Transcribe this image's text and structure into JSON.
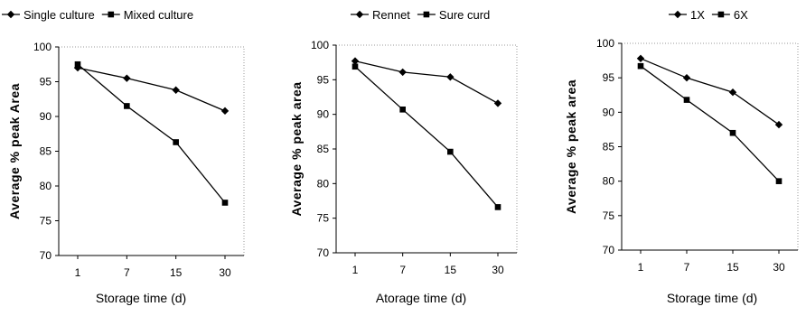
{
  "chart_data": [
    {
      "type": "line",
      "title": "",
      "categories": [
        "1",
        "7",
        "15",
        "30"
      ],
      "series": [
        {
          "name": "Single culture",
          "marker": "diamond",
          "values": [
            97.0,
            95.5,
            93.8,
            90.8
          ]
        },
        {
          "name": "Mixed culture",
          "marker": "square",
          "values": [
            97.5,
            91.5,
            86.3,
            77.6
          ]
        }
      ],
      "xlabel": "Storage time (d)",
      "ylabel": "Average % peak Area",
      "ylim": [
        70,
        100
      ],
      "yticks": [
        "70",
        "75",
        "80",
        "85",
        "90",
        "95",
        "100"
      ],
      "legend_position": "top-left",
      "grid": false
    },
    {
      "type": "line",
      "title": "",
      "categories": [
        "1",
        "7",
        "15",
        "30"
      ],
      "series": [
        {
          "name": "Rennet",
          "marker": "diamond",
          "values": [
            97.7,
            96.1,
            95.4,
            91.6
          ]
        },
        {
          "name": "Sure curd",
          "marker": "square",
          "values": [
            96.9,
            90.7,
            84.6,
            76.6
          ]
        }
      ],
      "xlabel": "Atorage time (d)",
      "ylabel": "Average % peak area",
      "ylim": [
        70,
        100
      ],
      "yticks": [
        "70",
        "75",
        "80",
        "85",
        "90",
        "95",
        "100"
      ],
      "legend_position": "top-center",
      "grid": false
    },
    {
      "type": "line",
      "title": "",
      "categories": [
        "1",
        "7",
        "15",
        "30"
      ],
      "series": [
        {
          "name": "1X",
          "marker": "diamond",
          "values": [
            97.8,
            95.0,
            92.9,
            88.2
          ]
        },
        {
          "name": "6X",
          "marker": "square",
          "values": [
            96.7,
            91.8,
            87.0,
            80.0
          ]
        }
      ],
      "xlabel": "Storage time (d)",
      "ylabel": "Average % peak area",
      "ylim": [
        70,
        100
      ],
      "yticks": [
        "70",
        "75",
        "80",
        "85",
        "90",
        "95",
        "100"
      ],
      "legend_position": "top-right",
      "grid": false
    }
  ]
}
